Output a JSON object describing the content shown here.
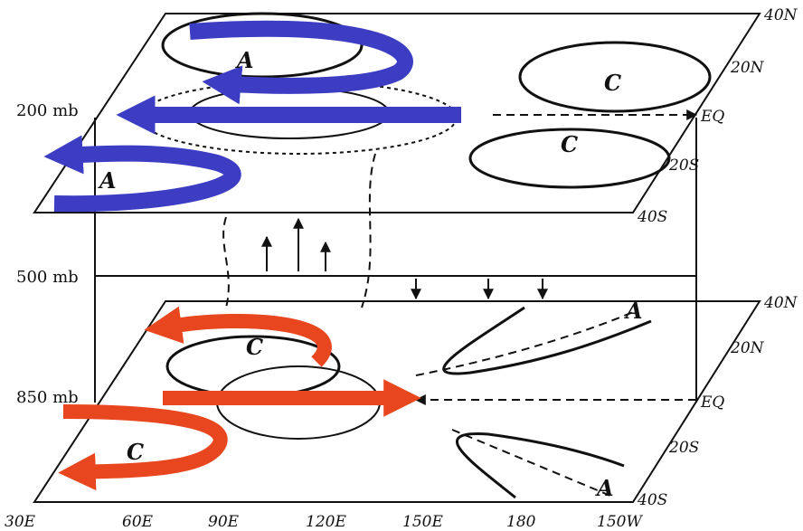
{
  "levels": [
    {
      "label": "200 mb"
    },
    {
      "label": "500 mb"
    },
    {
      "label": "850 mb"
    }
  ],
  "upper_plane": {
    "lat_labels": [
      "40N",
      "20N",
      "EQ",
      "20S",
      "40S"
    ],
    "letters": [
      "A",
      "C",
      "C",
      "A"
    ]
  },
  "lower_plane": {
    "lat_labels": [
      "40N",
      "20N",
      "EQ",
      "20S",
      "40S"
    ],
    "letters": [
      "C",
      "A",
      "C",
      "A"
    ]
  },
  "longitudes": [
    "30E",
    "60E",
    "90E",
    "120E",
    "150E",
    "180",
    "150W"
  ]
}
